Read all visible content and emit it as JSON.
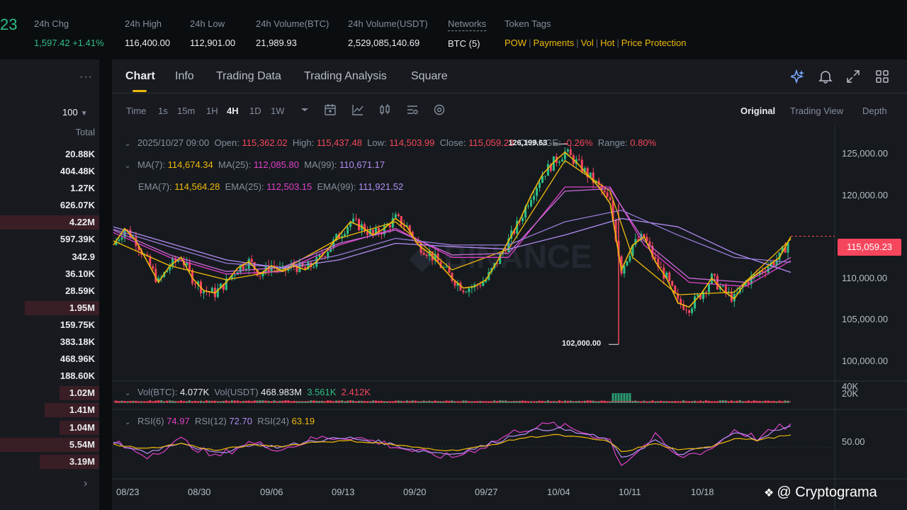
{
  "header": {
    "price_fragment": "23",
    "stats": [
      {
        "label": "24h Chg",
        "value": "1,597.42 +1.41%"
      },
      {
        "label": "24h High",
        "value": "116,400.00"
      },
      {
        "label": "24h Low",
        "value": "112,901.00"
      },
      {
        "label": "24h Volume(BTC)",
        "value": "21,989.93"
      },
      {
        "label": "24h Volume(USDT)",
        "value": "2,529,085,140.69"
      },
      {
        "label": "Networks",
        "value": "BTC (5)"
      }
    ],
    "tags_label": "Token Tags",
    "tags": [
      "POW",
      "Payments",
      "Vol",
      "Hot",
      "Price Protection"
    ],
    "colors": {
      "up": "#2ebd85",
      "down": "#f6465d",
      "accent": "#f0b90b"
    }
  },
  "orderbook": {
    "menu_icon": "more-horizontal-icon",
    "depth": "100",
    "header": "Total",
    "totals": [
      "20.88K",
      "404.48K",
      "1.27K",
      "626.07K",
      "4.22M",
      "597.39K",
      "342.9",
      "36.10K",
      "28.59K",
      "1.95M",
      "159.75K",
      "383.18K",
      "468.96K",
      "188.60K",
      "1.02M",
      "1.41M",
      "1.04M",
      "5.54M",
      "3.19M"
    ],
    "bar_fraction": [
      0.0,
      0.0,
      0.0,
      0.0,
      1.0,
      0.0,
      0.0,
      0.0,
      0.0,
      0.75,
      0.0,
      0.0,
      0.0,
      0.0,
      0.4,
      0.55,
      0.4,
      1.0,
      0.6
    ]
  },
  "tabs": [
    "Chart",
    "Info",
    "Trading Data",
    "Trading Analysis",
    "Square"
  ],
  "tab_icons": [
    "ai-sparkle-icon",
    "bell-icon",
    "expand-icon",
    "grid-icon"
  ],
  "toolbar": {
    "timeframes": [
      "Time",
      "1s",
      "15m",
      "1H",
      "4H",
      "1D",
      "1W"
    ],
    "active_timeframe": "4H",
    "tool_icons": [
      "chevron-down-icon",
      "calendar-icon",
      "indicator-icon",
      "candle-type-icon",
      "template-icon",
      "settings-icon"
    ],
    "views": [
      "Original",
      "Trading View",
      "Depth"
    ],
    "active_view": "Original"
  },
  "ohlc": {
    "date": "2025/10/27 09:00",
    "open_label": "Open:",
    "open": "115,362.02",
    "high_label": "High:",
    "high": "115,437.48",
    "low_label": "Low:",
    "low": "114,503.99",
    "close_label": "Close:",
    "close": "115,059.23",
    "change_label": "CHANGE:",
    "change": "-0.26%",
    "range_label": "Range:",
    "range": "0.80%"
  },
  "ma": {
    "ma7_label": "MA(7):",
    "ma7": "114,674.34",
    "ma25_label": "MA(25):",
    "ma25": "112,085.80",
    "ma99_label": "MA(99):",
    "ma99": "110,671.17",
    "ema7_label": "EMA(7):",
    "ema7": "114,564.28",
    "ema25_label": "EMA(25):",
    "ema25": "112,503.15",
    "ema99_label": "EMA(99):",
    "ema99": "111,921.52"
  },
  "volume": {
    "vbtc_label": "Vol(BTC):",
    "vbtc": "4.077K",
    "vusdt_label": "Vol(USDT)",
    "vusdt": "468.983M",
    "v1": "3.561K",
    "v2": "2.412K",
    "axis": [
      "40K",
      "20K"
    ]
  },
  "rsi": {
    "rsi6_label": "RSI(6)",
    "rsi6": "74.97",
    "rsi12_label": "RSI(12)",
    "rsi12": "72.70",
    "rsi24_label": "RSI(24)",
    "rsi24": "63.19",
    "axis": "50.00"
  },
  "chart_data": {
    "type": "line",
    "x_ticks": [
      "08/23",
      "08/30",
      "09/06",
      "09/13",
      "09/20",
      "09/27",
      "10/04",
      "10/11",
      "10/18"
    ],
    "y_ticks": [
      "125,000.00",
      "120,000.00",
      "110,000.00",
      "105,000.00",
      "100,000.00"
    ],
    "y_ticks_values": [
      125000,
      120000,
      110000,
      105000,
      100000
    ],
    "ylim": [
      98000,
      127500
    ],
    "last_price": "115,059.23",
    "high_mark": "126,199.63",
    "low_mark": "102,000.00",
    "high_mark_value": 126199.63,
    "low_mark_value": 102000,
    "price_series": [
      [
        0,
        114000
      ],
      [
        2,
        116000
      ],
      [
        4,
        114500
      ],
      [
        6,
        112000
      ],
      [
        8,
        109500
      ],
      [
        10,
        111500
      ],
      [
        12,
        112500
      ],
      [
        14,
        110000
      ],
      [
        16,
        108500
      ],
      [
        18,
        108200
      ],
      [
        20,
        109500
      ],
      [
        22,
        111200
      ],
      [
        24,
        112000
      ],
      [
        26,
        110500
      ],
      [
        28,
        111500
      ],
      [
        30,
        110800
      ],
      [
        32,
        111500
      ],
      [
        34,
        111000
      ],
      [
        36,
        112000
      ],
      [
        38,
        113500
      ],
      [
        40,
        115200
      ],
      [
        42,
        116800
      ],
      [
        44,
        116200
      ],
      [
        46,
        115200
      ],
      [
        48,
        116000
      ],
      [
        50,
        117200
      ],
      [
        52,
        116200
      ],
      [
        54,
        114000
      ],
      [
        56,
        113000
      ],
      [
        58,
        111500
      ],
      [
        60,
        110000
      ],
      [
        62,
        108800
      ],
      [
        64,
        109000
      ],
      [
        66,
        109800
      ],
      [
        68,
        112000
      ],
      [
        70,
        114500
      ],
      [
        72,
        117000
      ],
      [
        74,
        120000
      ],
      [
        76,
        122500
      ],
      [
        78,
        124000
      ],
      [
        80,
        125200
      ],
      [
        82,
        124000
      ],
      [
        84,
        122500
      ],
      [
        86,
        121000
      ],
      [
        88,
        119000
      ],
      [
        90,
        111000
      ],
      [
        92,
        114000
      ],
      [
        94,
        115000
      ],
      [
        96,
        112000
      ],
      [
        98,
        110000
      ],
      [
        100,
        107000
      ],
      [
        102,
        106500
      ],
      [
        104,
        108000
      ],
      [
        106,
        110000
      ],
      [
        108,
        108500
      ],
      [
        110,
        107500
      ],
      [
        112,
        109500
      ],
      [
        114,
        110500
      ],
      [
        116,
        111500
      ],
      [
        118,
        112500
      ],
      [
        120,
        115000
      ]
    ],
    "ma_series": [
      {
        "name": "MA(7)",
        "color": "#f0b90b",
        "points": [
          [
            0,
            114500
          ],
          [
            10,
            111500
          ],
          [
            20,
            109800
          ],
          [
            30,
            111000
          ],
          [
            40,
            114800
          ],
          [
            50,
            116800
          ],
          [
            60,
            111000
          ],
          [
            70,
            113500
          ],
          [
            80,
            124200
          ],
          [
            88,
            120500
          ],
          [
            92,
            112500
          ],
          [
            100,
            108000
          ],
          [
            110,
            108300
          ],
          [
            120,
            114700
          ]
        ]
      },
      {
        "name": "MA(25)",
        "color": "#e040c9",
        "points": [
          [
            0,
            115500
          ],
          [
            10,
            112500
          ],
          [
            20,
            110500
          ],
          [
            30,
            110800
          ],
          [
            40,
            114000
          ],
          [
            50,
            116000
          ],
          [
            60,
            112500
          ],
          [
            70,
            112500
          ],
          [
            80,
            121000
          ],
          [
            88,
            121000
          ],
          [
            94,
            114000
          ],
          [
            102,
            109500
          ],
          [
            112,
            109000
          ],
          [
            120,
            112100
          ]
        ]
      },
      {
        "name": "MA(99)",
        "color": "#b58cf5",
        "points": [
          [
            0,
            116200
          ],
          [
            10,
            114200
          ],
          [
            20,
            112200
          ],
          [
            30,
            111200
          ],
          [
            40,
            112200
          ],
          [
            50,
            114200
          ],
          [
            60,
            113800
          ],
          [
            70,
            113500
          ],
          [
            80,
            115200
          ],
          [
            90,
            117200
          ],
          [
            100,
            116200
          ],
          [
            110,
            113000
          ],
          [
            120,
            110700
          ]
        ]
      },
      {
        "name": "EMA(25)",
        "color": "#c86ad8",
        "points": [
          [
            0,
            115800
          ],
          [
            10,
            112800
          ],
          [
            20,
            110800
          ],
          [
            30,
            111300
          ],
          [
            40,
            114200
          ],
          [
            50,
            115800
          ],
          [
            60,
            112800
          ],
          [
            70,
            113000
          ],
          [
            80,
            120500
          ],
          [
            88,
            120800
          ],
          [
            94,
            114500
          ],
          [
            102,
            110000
          ],
          [
            112,
            109500
          ],
          [
            120,
            112500
          ]
        ]
      },
      {
        "name": "EMA(99)",
        "color": "#9a7ad8",
        "points": [
          [
            0,
            115900
          ],
          [
            10,
            113800
          ],
          [
            20,
            111800
          ],
          [
            30,
            111300
          ],
          [
            40,
            112800
          ],
          [
            50,
            114800
          ],
          [
            60,
            114000
          ],
          [
            70,
            114000
          ],
          [
            80,
            116800
          ],
          [
            90,
            118200
          ],
          [
            100,
            115200
          ],
          [
            110,
            112500
          ],
          [
            120,
            111900
          ]
        ]
      }
    ],
    "rsi_series": [
      {
        "name": "RSI(6)",
        "color": "#e040c9",
        "points": [
          [
            0,
            55
          ],
          [
            6,
            40
          ],
          [
            12,
            58
          ],
          [
            18,
            38
          ],
          [
            24,
            55
          ],
          [
            30,
            48
          ],
          [
            36,
            60
          ],
          [
            42,
            62
          ],
          [
            48,
            54
          ],
          [
            54,
            44
          ],
          [
            60,
            38
          ],
          [
            66,
            52
          ],
          [
            72,
            70
          ],
          [
            78,
            76
          ],
          [
            84,
            66
          ],
          [
            88,
            58
          ],
          [
            90,
            30
          ],
          [
            96,
            62
          ],
          [
            100,
            38
          ],
          [
            106,
            48
          ],
          [
            110,
            70
          ],
          [
            114,
            60
          ],
          [
            118,
            72
          ],
          [
            120,
            74.97
          ]
        ]
      },
      {
        "name": "RSI(12)",
        "color": "#b58cf5",
        "points": [
          [
            0,
            54
          ],
          [
            6,
            44
          ],
          [
            12,
            56
          ],
          [
            18,
            42
          ],
          [
            24,
            53
          ],
          [
            30,
            50
          ],
          [
            36,
            58
          ],
          [
            42,
            60
          ],
          [
            48,
            55
          ],
          [
            54,
            46
          ],
          [
            60,
            42
          ],
          [
            66,
            52
          ],
          [
            72,
            66
          ],
          [
            78,
            72
          ],
          [
            84,
            64
          ],
          [
            88,
            57
          ],
          [
            90,
            36
          ],
          [
            96,
            58
          ],
          [
            100,
            42
          ],
          [
            106,
            50
          ],
          [
            110,
            66
          ],
          [
            114,
            60
          ],
          [
            118,
            70
          ],
          [
            120,
            72.7
          ]
        ]
      },
      {
        "name": "RSI(24)",
        "color": "#f0b90b",
        "points": [
          [
            0,
            53
          ],
          [
            6,
            48
          ],
          [
            12,
            54
          ],
          [
            18,
            46
          ],
          [
            24,
            52
          ],
          [
            30,
            51
          ],
          [
            36,
            56
          ],
          [
            42,
            57
          ],
          [
            48,
            54
          ],
          [
            54,
            49
          ],
          [
            60,
            46
          ],
          [
            66,
            51
          ],
          [
            72,
            60
          ],
          [
            78,
            64
          ],
          [
            84,
            60
          ],
          [
            88,
            56
          ],
          [
            90,
            44
          ],
          [
            96,
            54
          ],
          [
            100,
            46
          ],
          [
            106,
            51
          ],
          [
            110,
            60
          ],
          [
            114,
            58
          ],
          [
            118,
            62
          ],
          [
            120,
            63.19
          ]
        ]
      }
    ]
  },
  "watermark": "@ Cryptograma"
}
